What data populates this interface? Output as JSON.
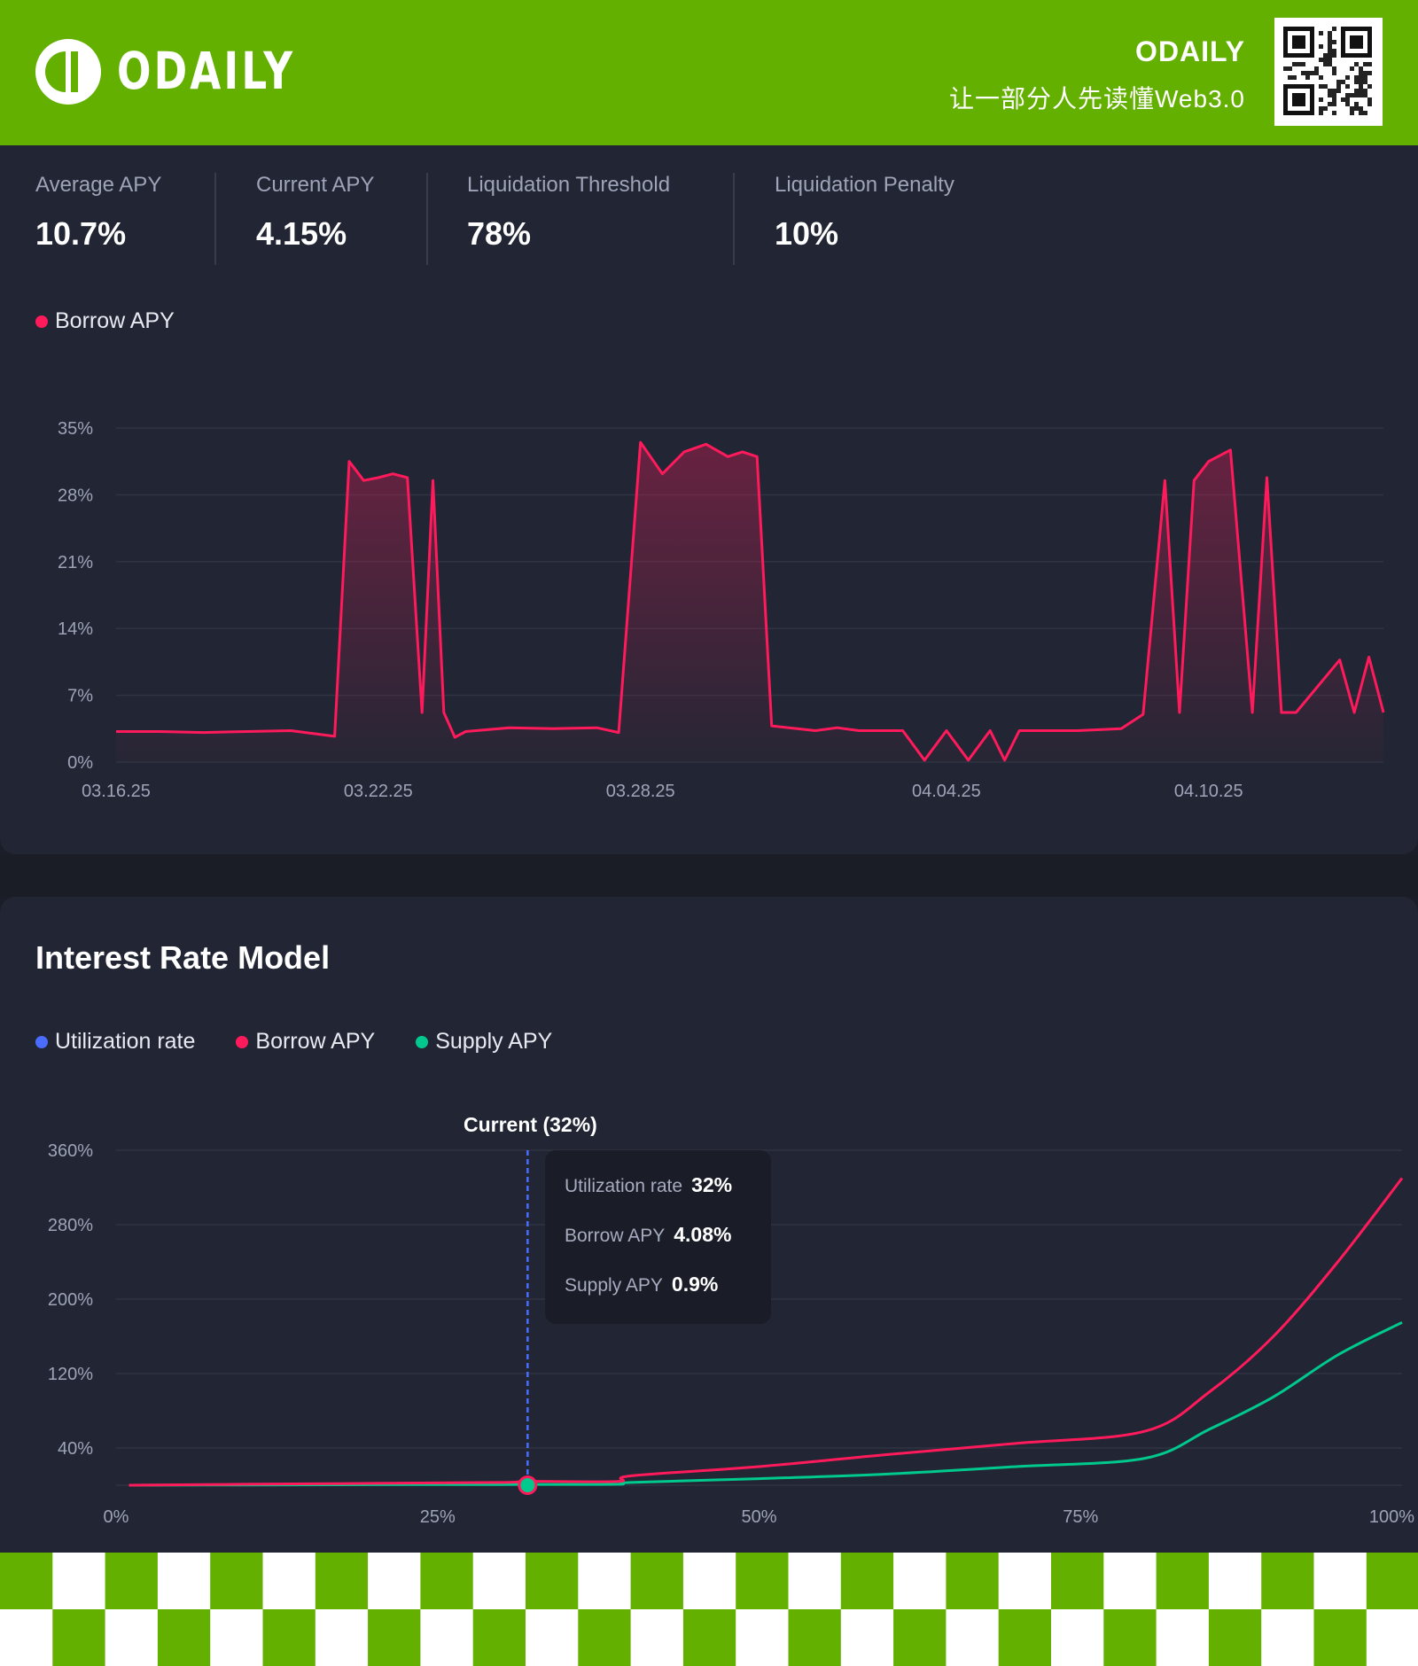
{
  "header": {
    "logo_text": "ODAILY",
    "brand_name": "ODAILY",
    "tagline": "让一部分人先读懂Web3.0",
    "qr_icon": "qr-code-icon",
    "accent_color": "#63b000"
  },
  "stats": [
    {
      "label": "Average APY",
      "value": "10.7%"
    },
    {
      "label": "Current APY",
      "value": "4.15%"
    },
    {
      "label": "Liquidation Threshold",
      "value": "78%"
    },
    {
      "label": "Liquidation Penalty",
      "value": "10%"
    }
  ],
  "chart_data": [
    {
      "type": "area",
      "legend": [
        {
          "name": "Borrow APY",
          "color": "#ff1a5c"
        }
      ],
      "series": [
        {
          "name": "Borrow APY",
          "color": "#ff1a5c"
        }
      ],
      "ylim": [
        0,
        35
      ],
      "yticks": [
        "0%",
        "7%",
        "14%",
        "21%",
        "28%",
        "35%"
      ],
      "yticks_values": [
        0,
        7,
        14,
        21,
        28,
        35
      ],
      "xticks": [
        "03.16.25",
        "03.22.25",
        "03.28.25",
        "04.04.25",
        "04.10.25"
      ],
      "xlim": [
        "03.16.25",
        "04.14.25"
      ],
      "grid": true,
      "points": [
        [
          "03.16.25",
          3.2
        ],
        [
          "03.17.25",
          3.2
        ],
        [
          "03.18.25",
          3.1
        ],
        [
          "03.19.25",
          3.2
        ],
        [
          "03.20.25",
          3.3
        ],
        [
          "03.21.25",
          2.7
        ],
        [
          "03.21.25",
          31.5
        ],
        [
          "03.21.25",
          29.5
        ],
        [
          "03.22.25",
          29.8
        ],
        [
          "03.22.25",
          30.2
        ],
        [
          "03.22.25",
          29.8
        ],
        [
          "03.23.25",
          5.2
        ],
        [
          "03.23.25",
          29.5
        ],
        [
          "03.23.25",
          5.2
        ],
        [
          "03.23.25",
          2.6
        ],
        [
          "03.24.25",
          3.2
        ],
        [
          "03.25.25",
          3.6
        ],
        [
          "03.26.25",
          3.5
        ],
        [
          "03.27.25",
          3.6
        ],
        [
          "03.27.25",
          3.1
        ],
        [
          "03.28.25",
          33.5
        ],
        [
          "03.28.25",
          30.2
        ],
        [
          "03.29.25",
          32.5
        ],
        [
          "03.29.25",
          33.3
        ],
        [
          "03.30.25",
          32.0
        ],
        [
          "03.30.25",
          32.5
        ],
        [
          "03.30.25",
          32.0
        ],
        [
          "03.31.25",
          3.8
        ],
        [
          "04.01.25",
          3.3
        ],
        [
          "04.01.25",
          3.6
        ],
        [
          "04.02.25",
          3.3
        ],
        [
          "04.03.25",
          3.3
        ],
        [
          "04.03.25",
          0.2
        ],
        [
          "04.04.25",
          3.3
        ],
        [
          "04.04.25",
          0.2
        ],
        [
          "04.05.25",
          3.3
        ],
        [
          "04.05.25",
          0.2
        ],
        [
          "04.05.25",
          3.3
        ],
        [
          "04.06.25",
          3.3
        ],
        [
          "04.07.25",
          3.3
        ],
        [
          "04.08.25",
          3.5
        ],
        [
          "04.08.25",
          5.0
        ],
        [
          "04.09.25",
          29.5
        ],
        [
          "04.09.25",
          5.2
        ],
        [
          "04.09.25",
          29.5
        ],
        [
          "04.10.25",
          31.5
        ],
        [
          "04.10.25",
          32.7
        ],
        [
          "04.11.25",
          5.2
        ],
        [
          "04.11.25",
          29.8
        ],
        [
          "04.11.25",
          5.2
        ],
        [
          "04.12.25",
          5.2
        ],
        [
          "04.13.25",
          10.7
        ],
        [
          "04.13.25",
          5.2
        ],
        [
          "04.13.25",
          11.0
        ],
        [
          "04.14.25",
          5.2
        ]
      ]
    },
    {
      "type": "line",
      "title": "Interest Rate Model",
      "legend": [
        {
          "name": "Utilization rate",
          "color": "#4a6cff"
        },
        {
          "name": "Borrow APY",
          "color": "#ff1a5c"
        },
        {
          "name": "Supply APY",
          "color": "#00c98d"
        }
      ],
      "xticks": [
        "0%",
        "25%",
        "50%",
        "75%",
        "100%"
      ],
      "xticks_values": [
        0,
        25,
        50,
        75,
        100
      ],
      "yticks": [
        "40%",
        "120%",
        "200%",
        "280%",
        "360%"
      ],
      "yticks_values": [
        40,
        120,
        200,
        280,
        360
      ],
      "ylim": [
        0,
        360
      ],
      "xlim": [
        0,
        100
      ],
      "grid": true,
      "current_label": "Current (32%)",
      "current_utilization": 32,
      "tooltip": [
        {
          "label": "Utilization rate",
          "value": "32%"
        },
        {
          "label": "Borrow APY",
          "value": "4.08%"
        },
        {
          "label": "Supply APY",
          "value": "0.9%"
        }
      ],
      "series": [
        {
          "name": "Borrow APY",
          "color": "#ff1a5c",
          "x": [
            1,
            10,
            20,
            30,
            32,
            39,
            40,
            50,
            60,
            70,
            80,
            85,
            90,
            95,
            100
          ],
          "y": [
            0,
            1,
            2,
            3,
            4.08,
            4,
            10,
            20,
            33,
            45,
            58,
            100,
            160,
            240,
            330
          ]
        },
        {
          "name": "Supply APY",
          "color": "#00c98d",
          "x": [
            1,
            10,
            20,
            30,
            32,
            39,
            40,
            50,
            60,
            70,
            80,
            85,
            90,
            95,
            100
          ],
          "y": [
            0,
            0.3,
            0.6,
            0.8,
            0.9,
            1,
            3,
            7,
            12,
            20,
            29,
            60,
            95,
            140,
            175
          ]
        }
      ]
    }
  ]
}
